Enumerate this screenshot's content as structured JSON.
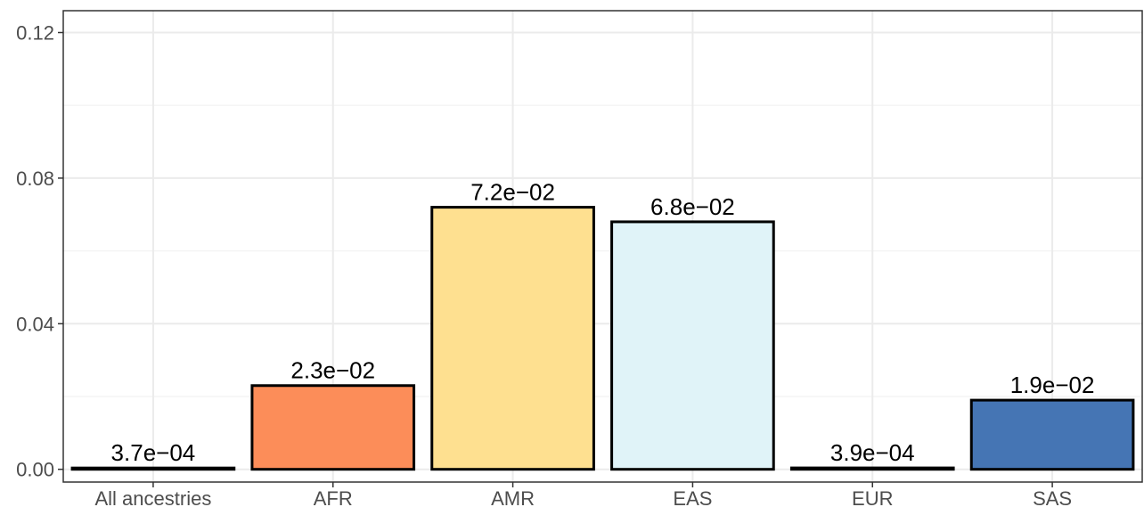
{
  "chart_data": {
    "type": "bar",
    "title": "",
    "xlabel": "",
    "ylabel": "",
    "categories": [
      "All ancestries",
      "AFR",
      "AMR",
      "EAS",
      "EUR",
      "SAS"
    ],
    "values": [
      0.00037,
      0.023,
      0.072,
      0.068,
      0.00039,
      0.019
    ],
    "value_labels": [
      "3.7e−04",
      "2.3e−02",
      "7.2e−02",
      "6.8e−02",
      "3.9e−04",
      "1.9e−02"
    ],
    "colors": [
      "#ffffff",
      "#fc8d59",
      "#fee090",
      "#e0f3f8",
      "#ffffff",
      "#4575b4"
    ],
    "ylim": [
      -0.0035,
      0.126
    ],
    "yticks": [
      0.0,
      0.04,
      0.08,
      0.12
    ],
    "ytick_labels": [
      "0.00",
      "0.04",
      "0.08",
      "0.12"
    ],
    "grid": true,
    "legend": "none"
  }
}
